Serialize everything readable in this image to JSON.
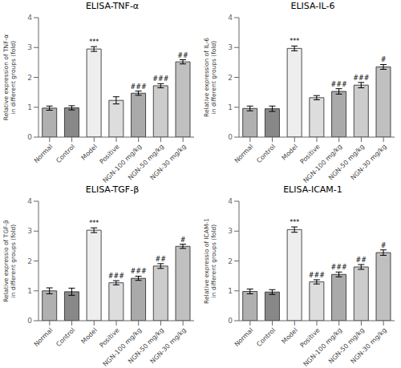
{
  "chart_data": [
    {
      "type": "bar",
      "title": "ELISA-TNF-α",
      "ylabel": "Relative expression of TNF-α\nin different groups (fold)",
      "categories": [
        "Normal",
        "Control",
        "Model",
        "Positive",
        "NGN-100 mg/kg",
        "NGN-50 mg/kg",
        "NGN-30 mg/kg"
      ],
      "values": [
        0.97,
        0.98,
        2.95,
        1.23,
        1.47,
        1.72,
        2.52
      ],
      "errors": [
        0.07,
        0.07,
        0.08,
        0.12,
        0.07,
        0.07,
        0.07
      ],
      "annotations": [
        null,
        null,
        "***",
        null,
        "###",
        "###",
        "##"
      ],
      "colors": [
        "#b0b0b0",
        "#888888",
        "#eeeeee",
        "#dddddd",
        "#aaaaaa",
        "#cccccc",
        "#c0c0c0"
      ],
      "ylim": [
        0,
        4
      ],
      "yticks": [
        0,
        1,
        2,
        3,
        4
      ],
      "grid": false
    },
    {
      "type": "bar",
      "title": "ELISA-IL-6",
      "ylabel": "Relative expression of IL-6\nin different groups (fold)",
      "categories": [
        "Normal",
        "Control",
        "Model",
        "Positive",
        "NGN-100 mg/kg",
        "NGN-50 mg/kg",
        "NGN-30 mg/kg"
      ],
      "values": [
        0.96,
        0.95,
        2.97,
        1.32,
        1.53,
        1.74,
        2.35
      ],
      "errors": [
        0.08,
        0.09,
        0.08,
        0.07,
        0.09,
        0.09,
        0.08
      ],
      "annotations": [
        null,
        null,
        "***",
        null,
        "###",
        "###",
        "#"
      ],
      "colors": [
        "#b0b0b0",
        "#888888",
        "#eeeeee",
        "#dddddd",
        "#aaaaaa",
        "#cccccc",
        "#c0c0c0"
      ],
      "ylim": [
        0,
        4
      ],
      "yticks": [
        0,
        1,
        2,
        3,
        4
      ],
      "grid": false
    },
    {
      "type": "bar",
      "title": "ELISA-TGF-β",
      "ylabel": "Relative expressio of TGF-β\nin different groups (fold)",
      "categories": [
        "Normal",
        "Control",
        "Model",
        "Positive",
        "NGN-100 mg/kg",
        "NGN-50 mg/kg",
        "NGN-30 mg/kg"
      ],
      "values": [
        1.0,
        0.97,
        3.03,
        1.27,
        1.42,
        1.83,
        2.49
      ],
      "errors": [
        0.1,
        0.12,
        0.08,
        0.07,
        0.07,
        0.08,
        0.07
      ],
      "annotations": [
        null,
        null,
        "***",
        "###",
        "###",
        "##",
        "#"
      ],
      "colors": [
        "#b0b0b0",
        "#888888",
        "#eeeeee",
        "#dddddd",
        "#aaaaaa",
        "#cccccc",
        "#c0c0c0"
      ],
      "ylim": [
        0,
        4
      ],
      "yticks": [
        0,
        1,
        2,
        3,
        4
      ],
      "grid": false
    },
    {
      "type": "bar",
      "title": "ELISA-ICAM-1",
      "ylabel": "Relative expressio of ICAM-1\nin different groups (fold)",
      "categories": [
        "Normal",
        "Control",
        "Model",
        "Positive",
        "NGN-100 mg/kg",
        "NGN-50 mg/kg",
        "NGN-30 mg/kg"
      ],
      "values": [
        0.98,
        0.96,
        3.05,
        1.3,
        1.55,
        1.8,
        2.28
      ],
      "errors": [
        0.08,
        0.08,
        0.09,
        0.07,
        0.08,
        0.08,
        0.09
      ],
      "annotations": [
        null,
        null,
        "***",
        "###",
        "###",
        "##",
        "#"
      ],
      "colors": [
        "#b0b0b0",
        "#888888",
        "#eeeeee",
        "#dddddd",
        "#aaaaaa",
        "#cccccc",
        "#c0c0c0"
      ],
      "ylim": [
        0,
        4
      ],
      "yticks": [
        0,
        1,
        2,
        3,
        4
      ],
      "grid": false
    }
  ]
}
